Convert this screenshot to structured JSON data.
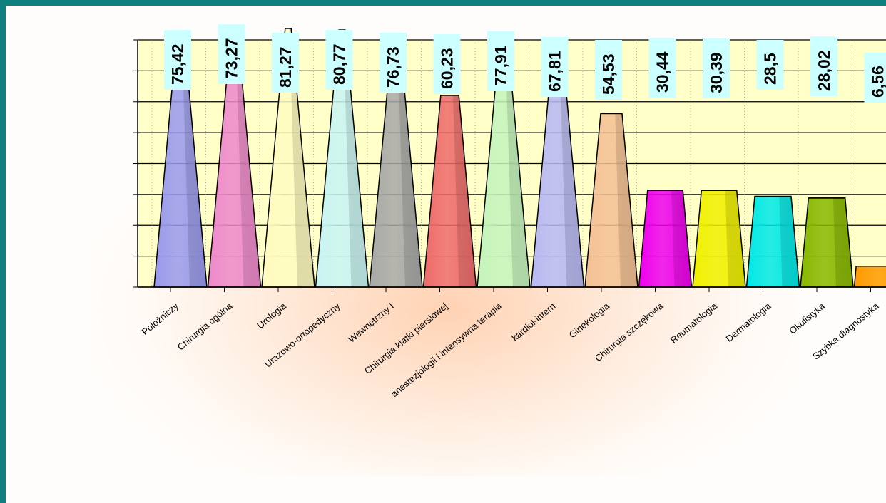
{
  "chart_data": {
    "type": "bar",
    "bar_shape": "cone",
    "title": "",
    "xlabel": "",
    "ylabel": "",
    "ylim": [
      0,
      80
    ],
    "y_ticks": [
      0,
      10,
      20,
      30,
      40,
      50,
      60,
      70,
      80
    ],
    "grid": true,
    "legend": "none",
    "plot_background": "#ffffc8",
    "label_background": "#ccffff",
    "categories": [
      "Położniczy",
      "Chirurgia ogólna",
      "Urologia",
      "Urazowo-ortopedyczny",
      "Wewnętrzny I",
      "Chirurgia klatki piersiowej",
      "anestezjologii i intensywna terapia",
      "kardiol-intern",
      "Ginekologia",
      "Chirurgia szczękowa",
      "Reumatologia",
      "Dermatologia",
      "Okulistyka",
      "Szybka diagnostyka"
    ],
    "values": [
      75.42,
      73.27,
      81.27,
      80.77,
      76.73,
      60.23,
      77.91,
      67.81,
      54.53,
      30.44,
      30.39,
      28.5,
      28.02,
      6.56
    ],
    "value_labels": [
      "75,42",
      "73,27",
      "81,27",
      "80,77",
      "76,73",
      "60,23",
      "77,91",
      "67,81",
      "54,53",
      "30,44",
      "30,39",
      "28,5",
      "28,02",
      "6,56"
    ],
    "colors": [
      "#9999ee",
      "#ee88cc",
      "#fffbc0",
      "#c8f4f4",
      "#a8a8a8",
      "#ee6b6b",
      "#c4f4bc",
      "#b8b8f4",
      "#f4c094",
      "#ee00ee",
      "#f0f000",
      "#00e8e8",
      "#88b800",
      "#ff9900"
    ]
  }
}
